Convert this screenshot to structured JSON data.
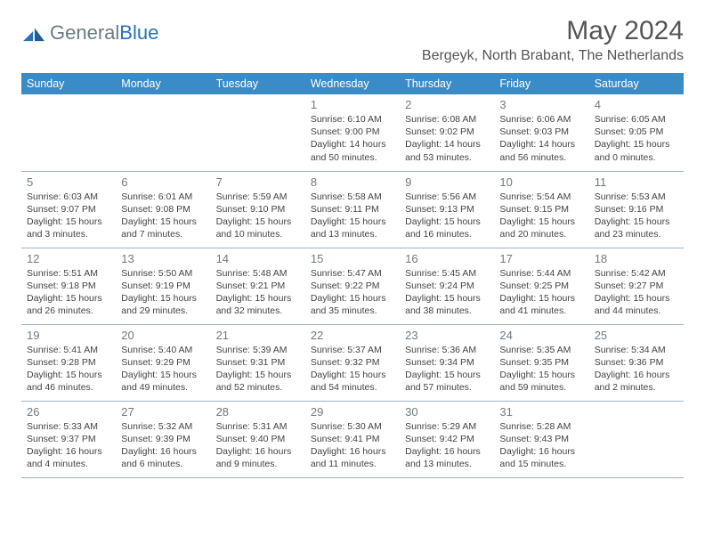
{
  "logo": {
    "text_general": "General",
    "text_blue": "Blue"
  },
  "title": "May 2024",
  "location": "Bergeyk, North Brabant, The Netherlands",
  "colors": {
    "header_bg": "#3b8bc7",
    "header_fg": "#ffffff",
    "border": "#9fb4c2",
    "daynum": "#6f7a82",
    "text": "#444444",
    "title": "#555555"
  },
  "weekdays": [
    "Sunday",
    "Monday",
    "Tuesday",
    "Wednesday",
    "Thursday",
    "Friday",
    "Saturday"
  ],
  "weeks": [
    [
      {},
      {},
      {},
      {
        "n": "1",
        "sr": "Sunrise: 6:10 AM",
        "ss": "Sunset: 9:00 PM",
        "d1": "Daylight: 14 hours",
        "d2": "and 50 minutes."
      },
      {
        "n": "2",
        "sr": "Sunrise: 6:08 AM",
        "ss": "Sunset: 9:02 PM",
        "d1": "Daylight: 14 hours",
        "d2": "and 53 minutes."
      },
      {
        "n": "3",
        "sr": "Sunrise: 6:06 AM",
        "ss": "Sunset: 9:03 PM",
        "d1": "Daylight: 14 hours",
        "d2": "and 56 minutes."
      },
      {
        "n": "4",
        "sr": "Sunrise: 6:05 AM",
        "ss": "Sunset: 9:05 PM",
        "d1": "Daylight: 15 hours",
        "d2": "and 0 minutes."
      }
    ],
    [
      {
        "n": "5",
        "sr": "Sunrise: 6:03 AM",
        "ss": "Sunset: 9:07 PM",
        "d1": "Daylight: 15 hours",
        "d2": "and 3 minutes."
      },
      {
        "n": "6",
        "sr": "Sunrise: 6:01 AM",
        "ss": "Sunset: 9:08 PM",
        "d1": "Daylight: 15 hours",
        "d2": "and 7 minutes."
      },
      {
        "n": "7",
        "sr": "Sunrise: 5:59 AM",
        "ss": "Sunset: 9:10 PM",
        "d1": "Daylight: 15 hours",
        "d2": "and 10 minutes."
      },
      {
        "n": "8",
        "sr": "Sunrise: 5:58 AM",
        "ss": "Sunset: 9:11 PM",
        "d1": "Daylight: 15 hours",
        "d2": "and 13 minutes."
      },
      {
        "n": "9",
        "sr": "Sunrise: 5:56 AM",
        "ss": "Sunset: 9:13 PM",
        "d1": "Daylight: 15 hours",
        "d2": "and 16 minutes."
      },
      {
        "n": "10",
        "sr": "Sunrise: 5:54 AM",
        "ss": "Sunset: 9:15 PM",
        "d1": "Daylight: 15 hours",
        "d2": "and 20 minutes."
      },
      {
        "n": "11",
        "sr": "Sunrise: 5:53 AM",
        "ss": "Sunset: 9:16 PM",
        "d1": "Daylight: 15 hours",
        "d2": "and 23 minutes."
      }
    ],
    [
      {
        "n": "12",
        "sr": "Sunrise: 5:51 AM",
        "ss": "Sunset: 9:18 PM",
        "d1": "Daylight: 15 hours",
        "d2": "and 26 minutes."
      },
      {
        "n": "13",
        "sr": "Sunrise: 5:50 AM",
        "ss": "Sunset: 9:19 PM",
        "d1": "Daylight: 15 hours",
        "d2": "and 29 minutes."
      },
      {
        "n": "14",
        "sr": "Sunrise: 5:48 AM",
        "ss": "Sunset: 9:21 PM",
        "d1": "Daylight: 15 hours",
        "d2": "and 32 minutes."
      },
      {
        "n": "15",
        "sr": "Sunrise: 5:47 AM",
        "ss": "Sunset: 9:22 PM",
        "d1": "Daylight: 15 hours",
        "d2": "and 35 minutes."
      },
      {
        "n": "16",
        "sr": "Sunrise: 5:45 AM",
        "ss": "Sunset: 9:24 PM",
        "d1": "Daylight: 15 hours",
        "d2": "and 38 minutes."
      },
      {
        "n": "17",
        "sr": "Sunrise: 5:44 AM",
        "ss": "Sunset: 9:25 PM",
        "d1": "Daylight: 15 hours",
        "d2": "and 41 minutes."
      },
      {
        "n": "18",
        "sr": "Sunrise: 5:42 AM",
        "ss": "Sunset: 9:27 PM",
        "d1": "Daylight: 15 hours",
        "d2": "and 44 minutes."
      }
    ],
    [
      {
        "n": "19",
        "sr": "Sunrise: 5:41 AM",
        "ss": "Sunset: 9:28 PM",
        "d1": "Daylight: 15 hours",
        "d2": "and 46 minutes."
      },
      {
        "n": "20",
        "sr": "Sunrise: 5:40 AM",
        "ss": "Sunset: 9:29 PM",
        "d1": "Daylight: 15 hours",
        "d2": "and 49 minutes."
      },
      {
        "n": "21",
        "sr": "Sunrise: 5:39 AM",
        "ss": "Sunset: 9:31 PM",
        "d1": "Daylight: 15 hours",
        "d2": "and 52 minutes."
      },
      {
        "n": "22",
        "sr": "Sunrise: 5:37 AM",
        "ss": "Sunset: 9:32 PM",
        "d1": "Daylight: 15 hours",
        "d2": "and 54 minutes."
      },
      {
        "n": "23",
        "sr": "Sunrise: 5:36 AM",
        "ss": "Sunset: 9:34 PM",
        "d1": "Daylight: 15 hours",
        "d2": "and 57 minutes."
      },
      {
        "n": "24",
        "sr": "Sunrise: 5:35 AM",
        "ss": "Sunset: 9:35 PM",
        "d1": "Daylight: 15 hours",
        "d2": "and 59 minutes."
      },
      {
        "n": "25",
        "sr": "Sunrise: 5:34 AM",
        "ss": "Sunset: 9:36 PM",
        "d1": "Daylight: 16 hours",
        "d2": "and 2 minutes."
      }
    ],
    [
      {
        "n": "26",
        "sr": "Sunrise: 5:33 AM",
        "ss": "Sunset: 9:37 PM",
        "d1": "Daylight: 16 hours",
        "d2": "and 4 minutes."
      },
      {
        "n": "27",
        "sr": "Sunrise: 5:32 AM",
        "ss": "Sunset: 9:39 PM",
        "d1": "Daylight: 16 hours",
        "d2": "and 6 minutes."
      },
      {
        "n": "28",
        "sr": "Sunrise: 5:31 AM",
        "ss": "Sunset: 9:40 PM",
        "d1": "Daylight: 16 hours",
        "d2": "and 9 minutes."
      },
      {
        "n": "29",
        "sr": "Sunrise: 5:30 AM",
        "ss": "Sunset: 9:41 PM",
        "d1": "Daylight: 16 hours",
        "d2": "and 11 minutes."
      },
      {
        "n": "30",
        "sr": "Sunrise: 5:29 AM",
        "ss": "Sunset: 9:42 PM",
        "d1": "Daylight: 16 hours",
        "d2": "and 13 minutes."
      },
      {
        "n": "31",
        "sr": "Sunrise: 5:28 AM",
        "ss": "Sunset: 9:43 PM",
        "d1": "Daylight: 16 hours",
        "d2": "and 15 minutes."
      },
      {}
    ]
  ]
}
